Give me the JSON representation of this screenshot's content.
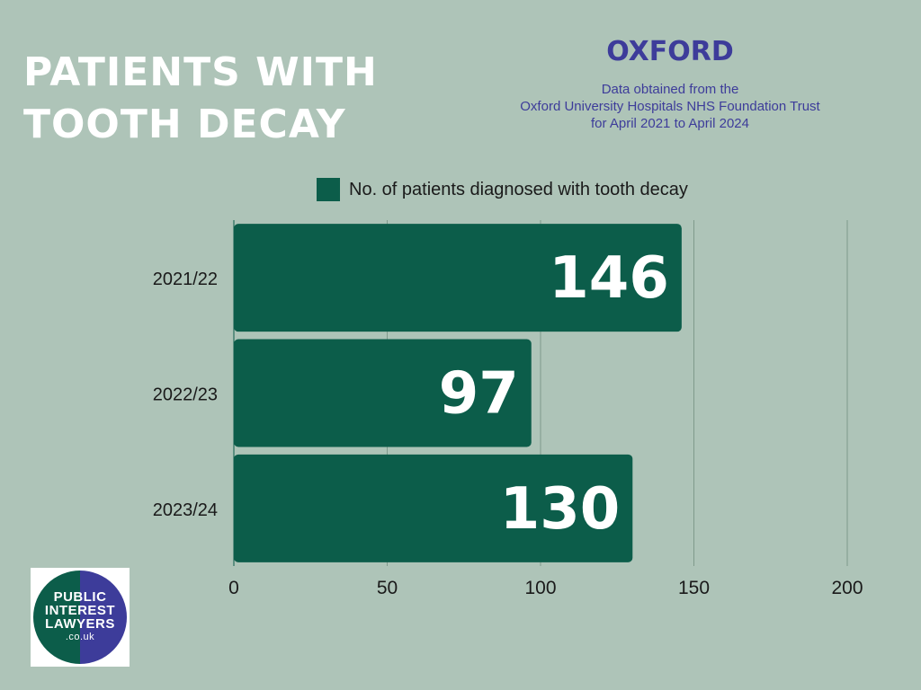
{
  "header": {
    "title_line1": "PATIENTS WITH",
    "title_line2": "TOOTH DECAY",
    "city": "OXFORD",
    "source_line1": "Data obtained from the",
    "source_line2": "Oxford University Hospitals NHS Foundation Trust",
    "source_line3": "for April 2021 to April 2024"
  },
  "legend": {
    "label": "No. of patients diagnosed with tooth decay"
  },
  "logo": {
    "line1": "PUBLIC",
    "line2": "INTEREST",
    "line3": "LAWYERS",
    "line4": ".co.uk"
  },
  "colors": {
    "background": "#aec4b8",
    "bar": "#0c5d4a",
    "accent": "#3d3c9a",
    "title": "#ffffff"
  },
  "chart_data": {
    "type": "bar",
    "orientation": "horizontal",
    "categories": [
      "2021/22",
      "2022/23",
      "2023/24"
    ],
    "series": [
      {
        "name": "No. of patients diagnosed with tooth decay",
        "values": [
          146,
          97,
          130
        ]
      }
    ],
    "data_labels": [
      "146",
      "97",
      "130"
    ],
    "xlim": [
      0,
      200
    ],
    "xticks": [
      "0",
      "50",
      "100",
      "150",
      "200"
    ],
    "grid": "vertical",
    "legend_position": "top"
  }
}
